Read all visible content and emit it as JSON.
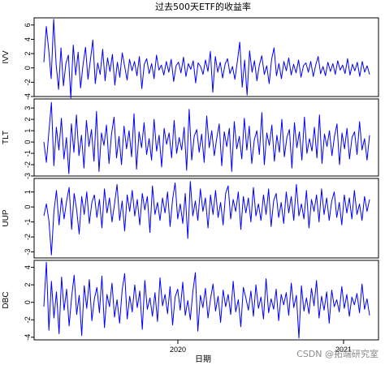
{
  "chart_data": {
    "type": "line",
    "title": "过去500天ETF的收益率",
    "xlabel": "日期",
    "x_ticks": [
      "2020",
      "2021"
    ],
    "line_color": "#0000ff",
    "grid": false,
    "legend": "none",
    "n_points": 500,
    "series": [
      {
        "name": "IVV",
        "ylim": [
          -4,
          7
        ],
        "yticks": [
          -4,
          -2,
          0,
          2,
          4,
          6
        ],
        "values": [
          0.8,
          5.8,
          2.5,
          -1.5,
          6.8,
          0.5,
          -3.0,
          2.8,
          -2.5,
          0.6,
          1.8,
          -4.2,
          3.2,
          -1.0,
          2.2,
          -2.8,
          0.4,
          2.9,
          -1.6,
          1.1,
          3.9,
          -2.2,
          0.7,
          -0.9,
          2.6,
          -1.8,
          1.4,
          -0.5,
          1.9,
          -2.4,
          0.8,
          -1.3,
          2.1,
          0.2,
          -1.7,
          1.2,
          -0.4,
          0.9,
          -1.1,
          1.6,
          -2.9,
          0.5,
          1.3,
          -0.8,
          0.6,
          -1.5,
          1.8,
          -0.3,
          0.4,
          -1.0,
          0.9,
          -0.6,
          1.2,
          -1.9,
          0.3,
          0.8,
          -0.7,
          1.5,
          -1.2,
          0.6,
          -0.2,
          1.0,
          -2.1,
          0.7,
          0.2,
          -0.9,
          1.1,
          -0.5,
          2.3,
          -3.4,
          1.6,
          -0.6,
          0.8,
          -1.4,
          0.5,
          1.3,
          -0.8,
          0.2,
          -1.6,
          0.9,
          3.6,
          -2.7,
          1.1,
          -3.8,
          2.4,
          -0.6,
          1.0,
          -1.8,
          0.4,
          1.7,
          -0.9,
          0.3,
          -2.2,
          1.2,
          2.8,
          -1.1,
          0.6,
          -1.5,
          0.9,
          -0.4,
          1.4,
          -1.0,
          0.5,
          -0.7,
          1.1,
          -1.3,
          0.3,
          0.7,
          -0.6,
          0.9,
          -1.2,
          0.4,
          1.6,
          -0.8,
          0.2,
          -1.1,
          0.8,
          -0.5,
          0.6,
          -0.9,
          1.0,
          -0.3,
          0.4,
          -0.8,
          1.3,
          -1.0,
          0.5,
          -0.4,
          0.8,
          -1.2,
          0.9,
          -0.6,
          0.3,
          -0.9
        ]
      },
      {
        "name": "TLT",
        "ylim": [
          -3,
          3.8
        ],
        "yticks": [
          -3,
          -2,
          -1,
          0,
          1,
          2,
          3
        ],
        "values": [
          0.0,
          -1.8,
          0.9,
          3.5,
          -2.1,
          1.3,
          -0.7,
          2.1,
          -1.5,
          0.4,
          -2.8,
          1.6,
          -0.9,
          2.4,
          -1.2,
          0.6,
          -2.3,
          1.9,
          -0.4,
          1.1,
          -1.7,
          2.7,
          -2.6,
          0.8,
          -0.3,
          1.5,
          -1.9,
          0.7,
          2.2,
          -1.4,
          0.5,
          -2.0,
          1.4,
          -0.6,
          1.0,
          -1.3,
          2.5,
          -2.4,
          0.9,
          -0.5,
          1.7,
          -1.1,
          0.3,
          -1.6,
          2.0,
          -0.8,
          0.6,
          -2.2,
          1.2,
          -0.2,
          0.8,
          -1.4,
          1.9,
          -1.0,
          0.4,
          -0.7,
          1.3,
          -2.5,
          2.9,
          -1.6,
          0.5,
          1.1,
          -0.9,
          0.7,
          -1.8,
          2.3,
          -0.5,
          1.0,
          -1.2,
          0.3,
          1.6,
          -2.1,
          0.9,
          -0.4,
          1.2,
          -2.6,
          1.8,
          -0.6,
          0.5,
          -1.5,
          2.1,
          -0.7,
          1.4,
          -1.9,
          0.2,
          1.0,
          -1.1,
          2.6,
          -2.0,
          0.8,
          -0.3,
          1.5,
          -1.7,
          0.6,
          -0.9,
          2.0,
          -1.3,
          0.4,
          1.1,
          -2.3,
          1.7,
          -0.5,
          0.9,
          -1.6,
          2.2,
          -1.0,
          0.3,
          -0.8,
          1.3,
          -1.4,
          2.4,
          -1.9,
          0.7,
          -0.4,
          1.0,
          -1.2,
          0.5,
          1.6,
          -2.0,
          0.8,
          -0.6,
          1.2,
          -1.5,
          0.4,
          0.9,
          -1.1,
          1.8,
          -0.7,
          0.3,
          -1.6,
          0.6
        ]
      },
      {
        "name": "UUP",
        "ylim": [
          -3.4,
          1.9
        ],
        "yticks": [
          -3,
          -2,
          -1,
          0,
          1
        ],
        "values": [
          -0.6,
          0.2,
          -0.9,
          -3.2,
          -0.3,
          1.1,
          -1.2,
          0.6,
          -0.8,
          0.4,
          1.3,
          -1.5,
          0.9,
          -0.2,
          -1.8,
          0.7,
          -0.5,
          1.0,
          -1.1,
          0.3,
          0.8,
          -0.7,
          0.5,
          -1.4,
          1.2,
          -0.4,
          0.6,
          -1.0,
          0.2,
          1.5,
          -0.9,
          0.4,
          -1.6,
          0.8,
          -0.3,
          1.1,
          -0.6,
          0.5,
          -1.2,
          0.9,
          -0.2,
          0.7,
          -1.7,
          1.4,
          -0.5,
          0.3,
          -0.9,
          0.6,
          -0.4,
          1.0,
          -1.3,
          0.5,
          1.6,
          -0.8,
          0.2,
          -1.1,
          0.9,
          -2.1,
          1.7,
          -0.6,
          0.4,
          -0.9,
          1.2,
          -0.3,
          0.6,
          -1.4,
          0.8,
          -0.5,
          1.1,
          -0.7,
          0.3,
          -1.2,
          0.9,
          1.4,
          -0.8,
          0.5,
          -0.3,
          1.0,
          -1.5,
          0.7,
          -0.4,
          0.6,
          -1.0,
          1.3,
          -0.6,
          0.2,
          -0.9,
          0.8,
          -0.5,
          1.2,
          -1.3,
          0.4,
          0.9,
          -0.7,
          0.3,
          -1.1,
          1.0,
          -0.4,
          0.7,
          -0.9,
          1.5,
          -0.6,
          0.2,
          -0.8,
          1.1,
          -1.4,
          0.5,
          -0.3,
          0.8,
          -1.0,
          1.2,
          -0.5,
          0.6,
          -0.9,
          0.4,
          1.0,
          -0.7,
          0.3,
          -1.2,
          0.8,
          -0.4,
          0.6,
          -0.8,
          1.1,
          -0.5,
          0.2,
          -0.9,
          0.7,
          -0.3,
          0.5
        ]
      },
      {
        "name": "DBC",
        "ylim": [
          -4.3,
          4.8
        ],
        "yticks": [
          -4,
          -2,
          0,
          2,
          4
        ],
        "values": [
          -0.5,
          4.6,
          -3.2,
          2.4,
          -1.8,
          1.2,
          -3.6,
          2.9,
          -0.9,
          1.5,
          -2.7,
          0.6,
          3.1,
          -1.4,
          0.8,
          -3.8,
          1.9,
          -0.7,
          2.6,
          -2.1,
          0.4,
          1.7,
          -1.2,
          3.0,
          -2.9,
          0.9,
          -0.5,
          2.2,
          -1.7,
          0.3,
          -2.4,
          1.4,
          3.3,
          -1.9,
          0.7,
          -1.1,
          2.0,
          -0.6,
          1.3,
          -3.1,
          2.5,
          -0.8,
          0.5,
          -1.6,
          1.1,
          -2.2,
          2.8,
          -0.4,
          0.9,
          -1.3,
          1.8,
          -2.6,
          0.6,
          1.5,
          -0.9,
          2.3,
          -1.5,
          0.2,
          -2.0,
          1.2,
          3.4,
          -3.3,
          0.8,
          -0.6,
          1.6,
          -1.8,
          0.4,
          2.1,
          -1.0,
          0.7,
          -2.3,
          1.4,
          -0.5,
          0.9,
          -1.4,
          2.4,
          -1.1,
          0.3,
          -2.8,
          1.7,
          0.5,
          -0.9,
          1.3,
          -1.6,
          2.0,
          -0.7,
          0.6,
          -1.9,
          2.7,
          -1.2,
          0.4,
          -0.8,
          1.5,
          -2.1,
          0.9,
          -0.3,
          1.1,
          -1.5,
          2.2,
          -0.6,
          0.8,
          -4.1,
          1.9,
          -1.0,
          0.5,
          -1.3,
          1.6,
          -0.4,
          2.5,
          -1.8,
          0.7,
          -0.9,
          1.2,
          -2.4,
          1.4,
          -0.5,
          0.3,
          -1.1,
          1.8,
          -0.7,
          0.9,
          -1.6,
          0.6,
          -0.3,
          1.0,
          -1.2,
          2.1,
          -0.8,
          0.4,
          -1.5
        ]
      }
    ]
  },
  "watermark": "CSDN @拓端研究室"
}
